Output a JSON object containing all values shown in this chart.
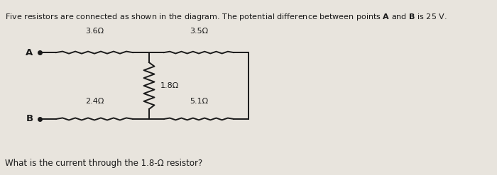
{
  "title": "Five resistors are connected as shown in the diagram. The potential difference between points $\\mathbf{A}$ and $\\mathbf{B}$ is 25 V.",
  "question": "What is the current through the 1.8-Ω resistor?",
  "label_A": "$\\mathbf{A}$",
  "label_B": "$\\mathbf{B}$",
  "R1_label": "3.6Ω",
  "R2_label": "3.5Ω",
  "R3_label": "1.8Ω",
  "R4_label": "2.4Ω",
  "R5_label": "5.1Ω",
  "bg_color": "#e8e4dd",
  "line_color": "#1a1a1a",
  "text_color": "#1a1a1a",
  "fig_width": 7.0,
  "fig_height": 2.47,
  "xA": 0.08,
  "xM1": 0.3,
  "xM2": 0.5,
  "yTop": 0.7,
  "yBot": 0.32,
  "yTitle": 0.93,
  "yQuestion": 0.04,
  "title_fontsize": 8.0,
  "label_fontsize": 9.5,
  "resistor_label_fontsize": 8.0,
  "question_fontsize": 8.5
}
